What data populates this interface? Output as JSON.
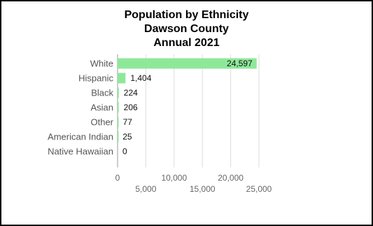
{
  "chart_data": {
    "type": "bar",
    "orientation": "horizontal",
    "title_lines": [
      "Population by Ethnicity",
      "Dawson County",
      "Annual 2021"
    ],
    "categories": [
      "White",
      "Hispanic",
      "Black",
      "Asian",
      "Other",
      "American Indian",
      "Native Hawaiian"
    ],
    "values": [
      24597,
      1404,
      224,
      206,
      77,
      25,
      0
    ],
    "value_labels": [
      "24,597",
      "1,404",
      "224",
      "206",
      "77",
      "25",
      "0"
    ],
    "xlim": [
      0,
      25000
    ],
    "x_ticks_top_row": [
      "0",
      "10,000",
      "20,000"
    ],
    "x_ticks_bottom_row": [
      "5,000",
      "15,000",
      "25,000"
    ],
    "grid": true,
    "legend": "none",
    "bar_color": "#8ee89a"
  }
}
